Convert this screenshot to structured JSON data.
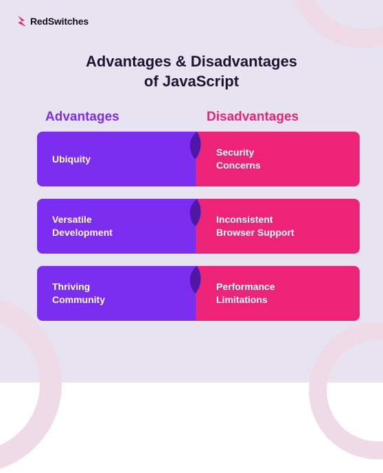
{
  "colors": {
    "background": "#e7e3f1",
    "arc": "#eedbe7",
    "title": "#1d1530",
    "logo_text": "#111111",
    "logo_mark": "#ec1858",
    "advantages": "#7b2df0",
    "advantages_dark": "#4e17a8",
    "disadvantages": "#ed2377",
    "cell_text": "#ffffff"
  },
  "brand": {
    "name": "RedSwitches"
  },
  "title": "Advantages & Disadvantages\nof JavaScript",
  "headers": {
    "left": "Advantages",
    "right": "Disadvantages"
  },
  "rows": [
    {
      "left": "Ubiquity",
      "right": "Security\nConcerns"
    },
    {
      "left": "Versatile\nDevelopment",
      "right": "Inconsistent\nBrowser Support"
    },
    {
      "left": "Thriving\nCommunity",
      "right": "Performance\nLimitations"
    }
  ],
  "typography": {
    "title_fontsize": 22,
    "header_fontsize": 19,
    "cell_fontsize": 14,
    "logo_fontsize": 14
  }
}
